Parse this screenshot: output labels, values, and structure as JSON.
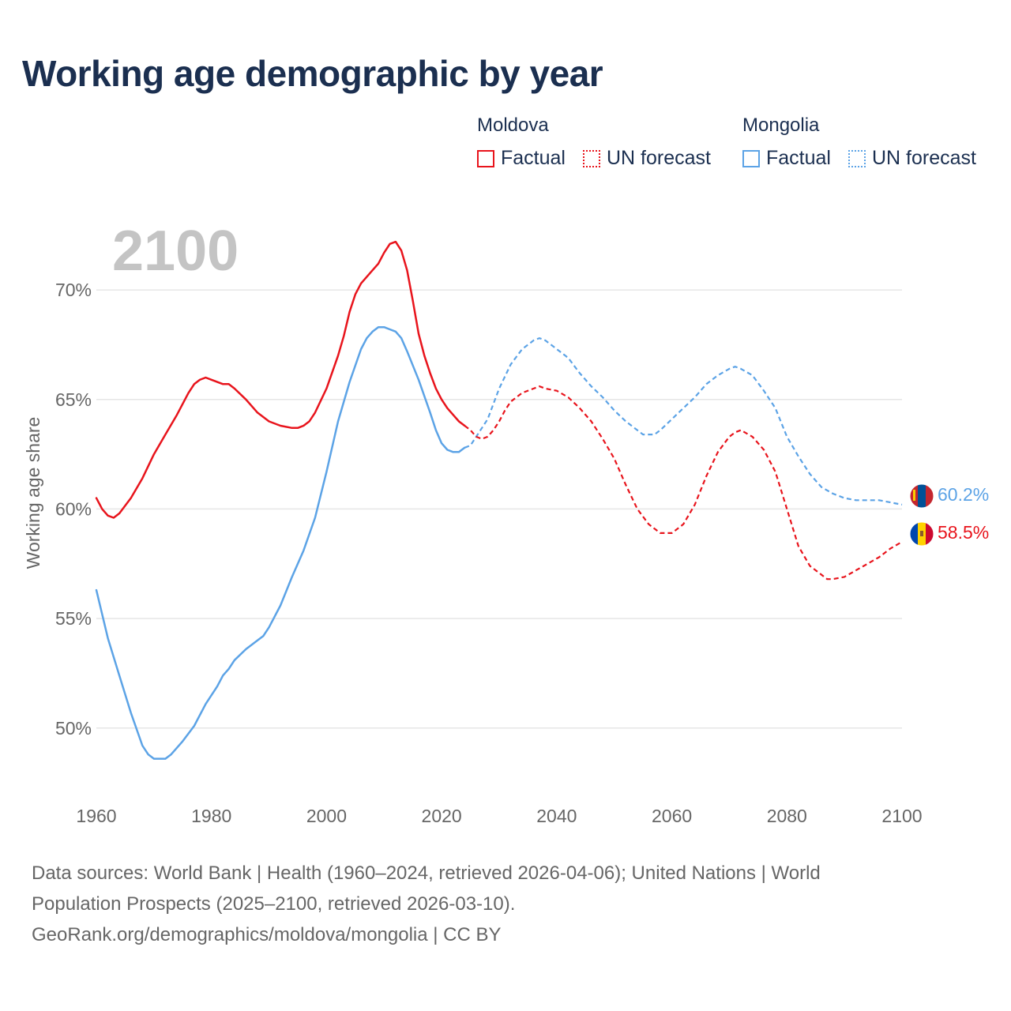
{
  "title": "Working age demographic by year",
  "legend": {
    "groups": [
      {
        "name": "Moldova",
        "color": "#e8141c",
        "factual_label": "Factual",
        "forecast_label": "UN forecast"
      },
      {
        "name": "Mongolia",
        "color": "#5ca3e6",
        "factual_label": "Factual",
        "forecast_label": "UN forecast"
      }
    ]
  },
  "footer": {
    "line1": "Data sources: World Bank | Health (1960–2024, retrieved 2026-04-06); United Nations | World",
    "line2": "Population Prospects (2025–2100, retrieved 2026-03-10).",
    "line3": "GeoRank.org/demographics/moldova/mongolia | CC BY"
  },
  "chart_data": {
    "type": "line",
    "title": "Working age demographic by year",
    "year_watermark": "2100",
    "xlabel": "",
    "ylabel": "Working age share",
    "xlim": [
      1960,
      2100
    ],
    "ylim": [
      47,
      73.5
    ],
    "x_ticks": [
      1960,
      1980,
      2000,
      2020,
      2040,
      2060,
      2080,
      2100
    ],
    "y_ticks": [
      50,
      55,
      60,
      65,
      70
    ],
    "y_tick_labels": [
      "50%",
      "55%",
      "60%",
      "65%",
      "70%"
    ],
    "grid": true,
    "forecast_start_year": 2024,
    "series": [
      {
        "name": "Moldova",
        "color": "#e8141c",
        "flag": "moldova",
        "end_label": "58.5%",
        "points": [
          [
            1960,
            60.5
          ],
          [
            1961,
            60.0
          ],
          [
            1962,
            59.7
          ],
          [
            1963,
            59.6
          ],
          [
            1964,
            59.8
          ],
          [
            1966,
            60.5
          ],
          [
            1968,
            61.4
          ],
          [
            1970,
            62.5
          ],
          [
            1972,
            63.4
          ],
          [
            1974,
            64.3
          ],
          [
            1975,
            64.8
          ],
          [
            1976,
            65.3
          ],
          [
            1977,
            65.7
          ],
          [
            1978,
            65.9
          ],
          [
            1979,
            66.0
          ],
          [
            1980,
            65.9
          ],
          [
            1981,
            65.8
          ],
          [
            1982,
            65.7
          ],
          [
            1983,
            65.7
          ],
          [
            1984,
            65.5
          ],
          [
            1986,
            65.0
          ],
          [
            1988,
            64.4
          ],
          [
            1990,
            64.0
          ],
          [
            1992,
            63.8
          ],
          [
            1994,
            63.7
          ],
          [
            1995,
            63.7
          ],
          [
            1996,
            63.8
          ],
          [
            1997,
            64.0
          ],
          [
            1998,
            64.4
          ],
          [
            2000,
            65.5
          ],
          [
            2002,
            67.0
          ],
          [
            2003,
            67.9
          ],
          [
            2004,
            69.0
          ],
          [
            2005,
            69.8
          ],
          [
            2006,
            70.3
          ],
          [
            2007,
            70.6
          ],
          [
            2008,
            70.9
          ],
          [
            2009,
            71.2
          ],
          [
            2010,
            71.7
          ],
          [
            2011,
            72.1
          ],
          [
            2012,
            72.2
          ],
          [
            2013,
            71.8
          ],
          [
            2014,
            70.9
          ],
          [
            2015,
            69.5
          ],
          [
            2016,
            68.0
          ],
          [
            2017,
            67.0
          ],
          [
            2018,
            66.2
          ],
          [
            2019,
            65.5
          ],
          [
            2020,
            65.0
          ],
          [
            2021,
            64.6
          ],
          [
            2022,
            64.3
          ],
          [
            2023,
            64.0
          ],
          [
            2024,
            63.8
          ],
          [
            2025,
            63.6
          ],
          [
            2026,
            63.3
          ],
          [
            2027,
            63.2
          ],
          [
            2028,
            63.3
          ],
          [
            2029,
            63.6
          ],
          [
            2030,
            64.0
          ],
          [
            2031,
            64.5
          ],
          [
            2032,
            64.9
          ],
          [
            2034,
            65.3
          ],
          [
            2036,
            65.5
          ],
          [
            2037,
            65.6
          ],
          [
            2038,
            65.5
          ],
          [
            2040,
            65.4
          ],
          [
            2042,
            65.1
          ],
          [
            2044,
            64.6
          ],
          [
            2046,
            64.0
          ],
          [
            2048,
            63.2
          ],
          [
            2050,
            62.3
          ],
          [
            2052,
            61.1
          ],
          [
            2054,
            60.0
          ],
          [
            2056,
            59.3
          ],
          [
            2058,
            58.9
          ],
          [
            2060,
            58.9
          ],
          [
            2062,
            59.3
          ],
          [
            2064,
            60.2
          ],
          [
            2066,
            61.5
          ],
          [
            2068,
            62.6
          ],
          [
            2070,
            63.3
          ],
          [
            2071,
            63.5
          ],
          [
            2072,
            63.6
          ],
          [
            2074,
            63.3
          ],
          [
            2076,
            62.7
          ],
          [
            2078,
            61.7
          ],
          [
            2080,
            60.0
          ],
          [
            2082,
            58.3
          ],
          [
            2084,
            57.4
          ],
          [
            2086,
            57.0
          ],
          [
            2087,
            56.8
          ],
          [
            2088,
            56.8
          ],
          [
            2090,
            56.9
          ],
          [
            2092,
            57.2
          ],
          [
            2094,
            57.5
          ],
          [
            2096,
            57.8
          ],
          [
            2098,
            58.2
          ],
          [
            2100,
            58.5
          ]
        ]
      },
      {
        "name": "Mongolia",
        "color": "#5ca3e6",
        "flag": "mongolia",
        "end_label": "60.2%",
        "points": [
          [
            1960,
            56.3
          ],
          [
            1961,
            55.2
          ],
          [
            1962,
            54.1
          ],
          [
            1964,
            52.4
          ],
          [
            1966,
            50.7
          ],
          [
            1968,
            49.2
          ],
          [
            1969,
            48.8
          ],
          [
            1970,
            48.6
          ],
          [
            1971,
            48.6
          ],
          [
            1972,
            48.6
          ],
          [
            1973,
            48.8
          ],
          [
            1975,
            49.4
          ],
          [
            1977,
            50.1
          ],
          [
            1979,
            51.1
          ],
          [
            1981,
            51.9
          ],
          [
            1982,
            52.4
          ],
          [
            1983,
            52.7
          ],
          [
            1984,
            53.1
          ],
          [
            1986,
            53.6
          ],
          [
            1988,
            54.0
          ],
          [
            1989,
            54.2
          ],
          [
            1990,
            54.6
          ],
          [
            1992,
            55.6
          ],
          [
            1994,
            56.9
          ],
          [
            1996,
            58.1
          ],
          [
            1998,
            59.6
          ],
          [
            2000,
            61.7
          ],
          [
            2002,
            64.0
          ],
          [
            2004,
            65.8
          ],
          [
            2006,
            67.3
          ],
          [
            2007,
            67.8
          ],
          [
            2008,
            68.1
          ],
          [
            2009,
            68.3
          ],
          [
            2010,
            68.3
          ],
          [
            2011,
            68.2
          ],
          [
            2012,
            68.1
          ],
          [
            2013,
            67.8
          ],
          [
            2014,
            67.2
          ],
          [
            2016,
            65.9
          ],
          [
            2018,
            64.4
          ],
          [
            2019,
            63.6
          ],
          [
            2020,
            63.0
          ],
          [
            2021,
            62.7
          ],
          [
            2022,
            62.6
          ],
          [
            2023,
            62.6
          ],
          [
            2024,
            62.8
          ],
          [
            2025,
            62.9
          ],
          [
            2026,
            63.3
          ],
          [
            2028,
            64.1
          ],
          [
            2030,
            65.5
          ],
          [
            2032,
            66.6
          ],
          [
            2034,
            67.3
          ],
          [
            2036,
            67.7
          ],
          [
            2037,
            67.8
          ],
          [
            2038,
            67.7
          ],
          [
            2040,
            67.3
          ],
          [
            2042,
            66.9
          ],
          [
            2044,
            66.2
          ],
          [
            2046,
            65.6
          ],
          [
            2048,
            65.1
          ],
          [
            2050,
            64.5
          ],
          [
            2052,
            64.0
          ],
          [
            2054,
            63.6
          ],
          [
            2055,
            63.4
          ],
          [
            2057,
            63.4
          ],
          [
            2058,
            63.6
          ],
          [
            2060,
            64.1
          ],
          [
            2062,
            64.6
          ],
          [
            2064,
            65.1
          ],
          [
            2066,
            65.7
          ],
          [
            2068,
            66.1
          ],
          [
            2070,
            66.4
          ],
          [
            2071,
            66.5
          ],
          [
            2072,
            66.4
          ],
          [
            2074,
            66.1
          ],
          [
            2076,
            65.4
          ],
          [
            2078,
            64.6
          ],
          [
            2080,
            63.3
          ],
          [
            2082,
            62.4
          ],
          [
            2084,
            61.6
          ],
          [
            2086,
            61.0
          ],
          [
            2088,
            60.7
          ],
          [
            2090,
            60.5
          ],
          [
            2092,
            60.4
          ],
          [
            2094,
            60.4
          ],
          [
            2096,
            60.4
          ],
          [
            2098,
            60.3
          ],
          [
            2100,
            60.2
          ]
        ]
      }
    ]
  }
}
